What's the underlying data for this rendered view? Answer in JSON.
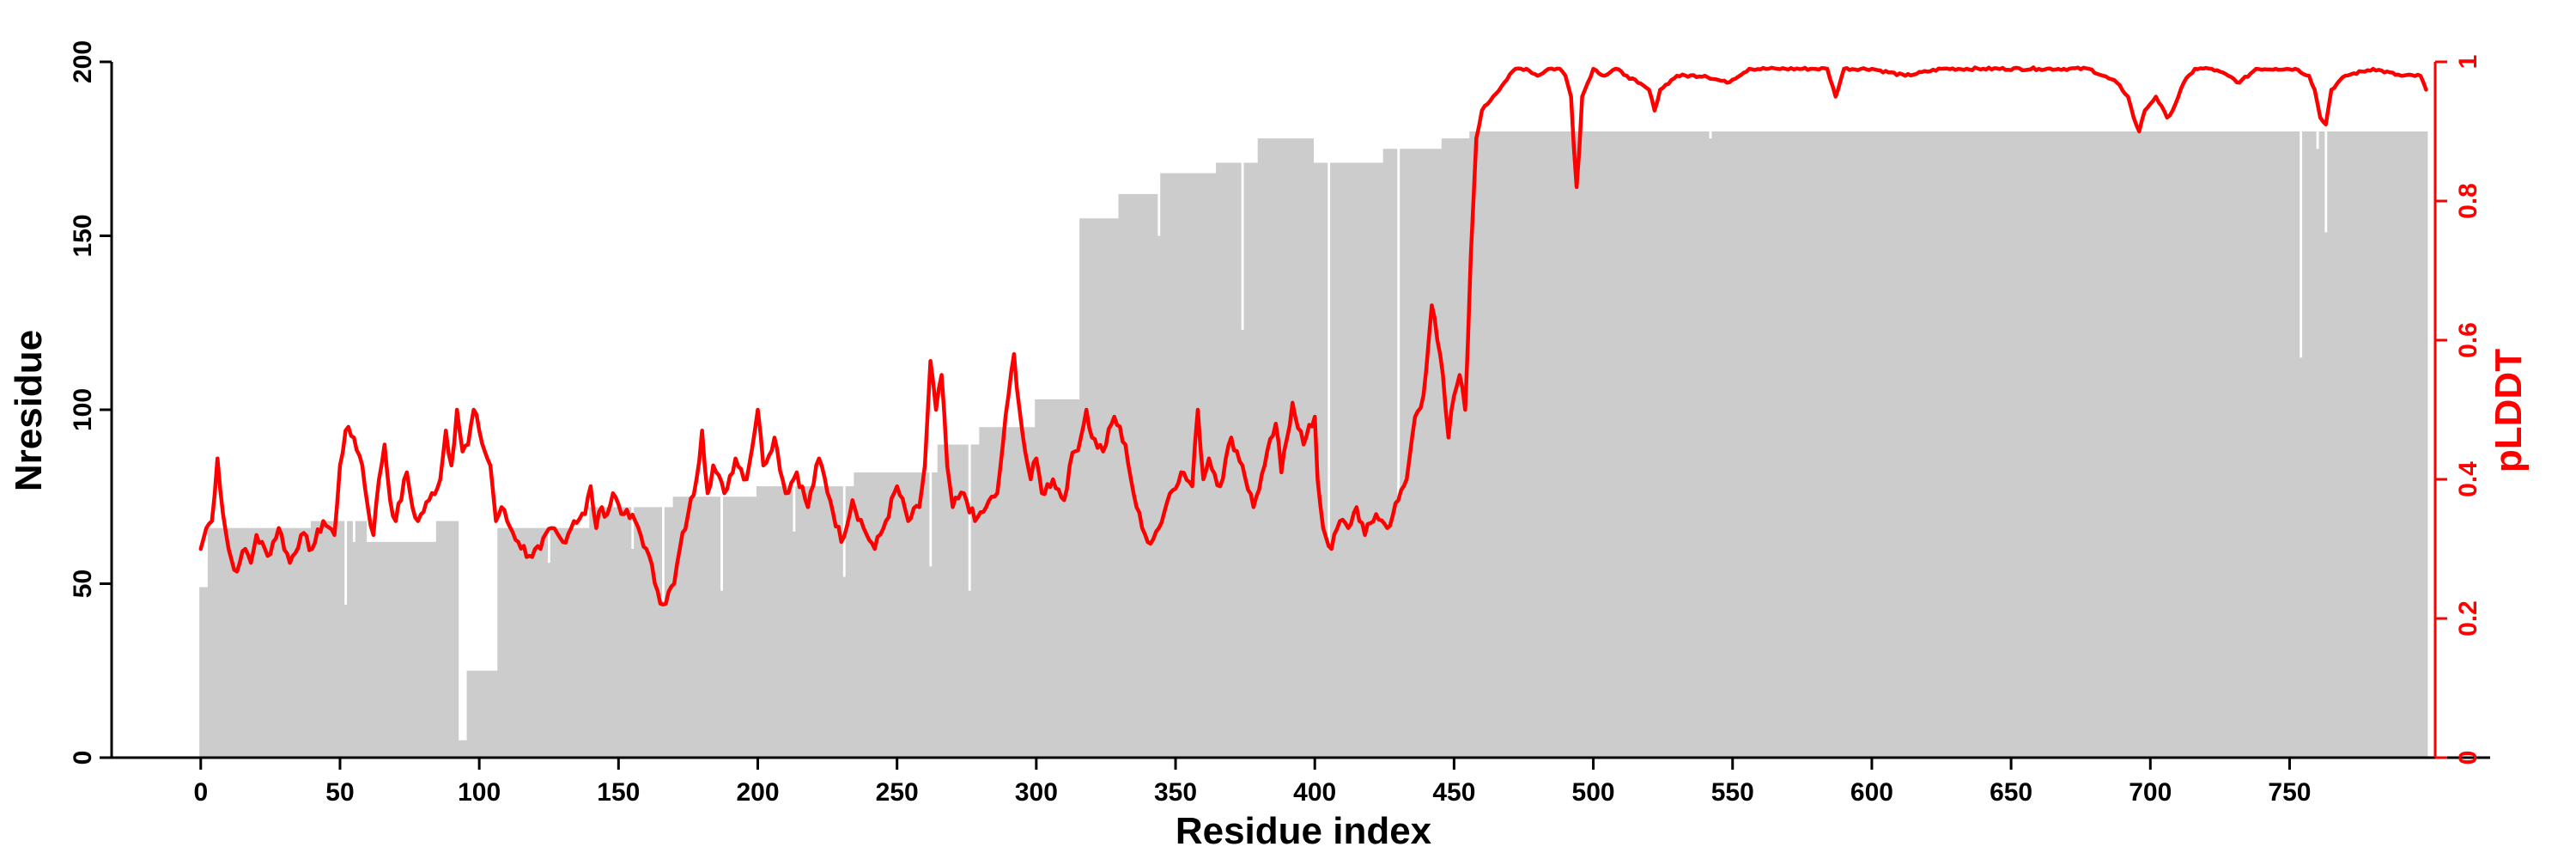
{
  "chart_data": {
    "type": "bar",
    "title": "",
    "xlabel": "Residue index",
    "ylabel_left": "Nresidue",
    "ylabel_right": "pLDDT",
    "xlim": [
      -32,
      822
    ],
    "ylim_left": [
      0,
      200
    ],
    "ylim_right": [
      0,
      1
    ],
    "x_ticks": [
      0,
      50,
      100,
      150,
      200,
      250,
      300,
      350,
      400,
      450,
      500,
      550,
      600,
      650,
      700,
      750
    ],
    "y_left_ticks": [
      0,
      50,
      100,
      150,
      200
    ],
    "y_right_ticks": [
      0,
      0.2,
      0.4,
      0.6,
      0.8,
      1
    ],
    "y_right_tick_labels": [
      "0",
      "0.2",
      "0.4",
      "0.6",
      "0.8",
      "1"
    ],
    "grid": false,
    "legend": "none",
    "colors": {
      "bars": "#cccccc",
      "plddt": "#ff0000",
      "axis_left": "#000000",
      "axis_right": "#ff0000",
      "gaps": "#ffffff"
    },
    "series": [
      {
        "name": "Nresidue",
        "kind": "bar",
        "x_step": 1,
        "segments": [
          [
            0,
            49
          ],
          [
            3,
            66
          ],
          [
            40,
            68
          ],
          [
            60,
            62
          ],
          [
            85,
            68
          ],
          [
            93,
            5
          ],
          [
            96,
            25
          ],
          [
            107,
            66
          ],
          [
            140,
            72
          ],
          [
            170,
            75
          ],
          [
            200,
            78
          ],
          [
            235,
            82
          ],
          [
            265,
            90
          ],
          [
            280,
            95
          ],
          [
            300,
            103
          ],
          [
            316,
            155
          ],
          [
            330,
            162
          ],
          [
            345,
            168
          ],
          [
            365,
            171
          ],
          [
            380,
            178
          ],
          [
            400,
            171
          ],
          [
            425,
            175
          ],
          [
            446,
            178
          ],
          [
            456,
            180
          ],
          [
            800,
            180
          ]
        ],
        "dips": [
          [
            52,
            44
          ],
          [
            55,
            62
          ],
          [
            95,
            5
          ],
          [
            125,
            56
          ],
          [
            155,
            60
          ],
          [
            166,
            45
          ],
          [
            187,
            48
          ],
          [
            213,
            65
          ],
          [
            231,
            52
          ],
          [
            262,
            55
          ],
          [
            276,
            48
          ],
          [
            344,
            150
          ],
          [
            374,
            123
          ],
          [
            405,
            60
          ],
          [
            430,
            75
          ],
          [
            542,
            178
          ],
          [
            754,
            115
          ],
          [
            760,
            175
          ],
          [
            763,
            151
          ]
        ]
      },
      {
        "name": "pLDDT",
        "kind": "line",
        "points": [
          [
            0,
            0.3
          ],
          [
            2,
            0.33
          ],
          [
            4,
            0.34
          ],
          [
            6,
            0.43
          ],
          [
            8,
            0.35
          ],
          [
            10,
            0.3
          ],
          [
            12,
            0.27
          ],
          [
            14,
            0.28
          ],
          [
            16,
            0.3
          ],
          [
            18,
            0.28
          ],
          [
            20,
            0.32
          ],
          [
            24,
            0.29
          ],
          [
            28,
            0.33
          ],
          [
            32,
            0.28
          ],
          [
            36,
            0.32
          ],
          [
            40,
            0.3
          ],
          [
            44,
            0.34
          ],
          [
            48,
            0.32
          ],
          [
            50,
            0.42
          ],
          [
            52,
            0.47
          ],
          [
            55,
            0.46
          ],
          [
            58,
            0.42
          ],
          [
            60,
            0.36
          ],
          [
            62,
            0.32
          ],
          [
            64,
            0.4
          ],
          [
            66,
            0.45
          ],
          [
            68,
            0.37
          ],
          [
            70,
            0.34
          ],
          [
            74,
            0.41
          ],
          [
            76,
            0.36
          ],
          [
            78,
            0.34
          ],
          [
            82,
            0.37
          ],
          [
            86,
            0.4
          ],
          [
            88,
            0.47
          ],
          [
            90,
            0.42
          ],
          [
            92,
            0.5
          ],
          [
            94,
            0.44
          ],
          [
            96,
            0.45
          ],
          [
            98,
            0.5
          ],
          [
            100,
            0.47
          ],
          [
            102,
            0.44
          ],
          [
            104,
            0.42
          ],
          [
            106,
            0.34
          ],
          [
            108,
            0.36
          ],
          [
            110,
            0.34
          ],
          [
            114,
            0.31
          ],
          [
            118,
            0.29
          ],
          [
            122,
            0.3
          ],
          [
            126,
            0.33
          ],
          [
            130,
            0.31
          ],
          [
            134,
            0.34
          ],
          [
            138,
            0.35
          ],
          [
            140,
            0.39
          ],
          [
            142,
            0.33
          ],
          [
            144,
            0.36
          ],
          [
            146,
            0.35
          ],
          [
            148,
            0.38
          ],
          [
            152,
            0.35
          ],
          [
            156,
            0.34
          ],
          [
            160,
            0.3
          ],
          [
            164,
            0.24
          ],
          [
            166,
            0.22
          ],
          [
            170,
            0.25
          ],
          [
            172,
            0.3
          ],
          [
            175,
            0.35
          ],
          [
            178,
            0.4
          ],
          [
            180,
            0.47
          ],
          [
            182,
            0.38
          ],
          [
            184,
            0.42
          ],
          [
            188,
            0.38
          ],
          [
            192,
            0.43
          ],
          [
            196,
            0.4
          ],
          [
            200,
            0.5
          ],
          [
            202,
            0.42
          ],
          [
            206,
            0.46
          ],
          [
            210,
            0.38
          ],
          [
            214,
            0.41
          ],
          [
            218,
            0.36
          ],
          [
            222,
            0.43
          ],
          [
            226,
            0.37
          ],
          [
            230,
            0.31
          ],
          [
            234,
            0.37
          ],
          [
            238,
            0.33
          ],
          [
            242,
            0.3
          ],
          [
            246,
            0.34
          ],
          [
            250,
            0.39
          ],
          [
            254,
            0.34
          ],
          [
            258,
            0.36
          ],
          [
            260,
            0.42
          ],
          [
            262,
            0.57
          ],
          [
            264,
            0.5
          ],
          [
            266,
            0.55
          ],
          [
            268,
            0.42
          ],
          [
            270,
            0.36
          ],
          [
            274,
            0.38
          ],
          [
            278,
            0.34
          ],
          [
            282,
            0.36
          ],
          [
            286,
            0.38
          ],
          [
            288,
            0.45
          ],
          [
            290,
            0.52
          ],
          [
            292,
            0.58
          ],
          [
            294,
            0.5
          ],
          [
            296,
            0.44
          ],
          [
            298,
            0.4
          ],
          [
            300,
            0.43
          ],
          [
            302,
            0.38
          ],
          [
            306,
            0.4
          ],
          [
            310,
            0.37
          ],
          [
            312,
            0.42
          ],
          [
            316,
            0.46
          ],
          [
            318,
            0.5
          ],
          [
            320,
            0.46
          ],
          [
            324,
            0.44
          ],
          [
            328,
            0.49
          ],
          [
            332,
            0.45
          ],
          [
            334,
            0.4
          ],
          [
            336,
            0.36
          ],
          [
            338,
            0.33
          ],
          [
            340,
            0.31
          ],
          [
            344,
            0.33
          ],
          [
            348,
            0.38
          ],
          [
            352,
            0.41
          ],
          [
            356,
            0.39
          ],
          [
            358,
            0.5
          ],
          [
            360,
            0.4
          ],
          [
            362,
            0.43
          ],
          [
            366,
            0.39
          ],
          [
            370,
            0.46
          ],
          [
            374,
            0.42
          ],
          [
            378,
            0.36
          ],
          [
            382,
            0.42
          ],
          [
            386,
            0.48
          ],
          [
            388,
            0.41
          ],
          [
            392,
            0.51
          ],
          [
            396,
            0.45
          ],
          [
            400,
            0.49
          ],
          [
            401,
            0.4
          ],
          [
            403,
            0.33
          ],
          [
            406,
            0.3
          ],
          [
            409,
            0.34
          ],
          [
            412,
            0.33
          ],
          [
            415,
            0.36
          ],
          [
            418,
            0.32
          ],
          [
            422,
            0.35
          ],
          [
            426,
            0.33
          ],
          [
            430,
            0.37
          ],
          [
            433,
            0.4
          ],
          [
            436,
            0.49
          ],
          [
            439,
            0.52
          ],
          [
            442,
            0.65
          ],
          [
            444,
            0.6
          ],
          [
            446,
            0.55
          ],
          [
            447,
            0.5
          ],
          [
            448,
            0.46
          ],
          [
            450,
            0.52
          ],
          [
            452,
            0.55
          ],
          [
            454,
            0.5
          ],
          [
            455,
            0.6
          ],
          [
            456,
            0.72
          ],
          [
            458,
            0.89
          ],
          [
            460,
            0.93
          ],
          [
            464,
            0.95
          ],
          [
            468,
            0.97
          ],
          [
            472,
            0.99
          ],
          [
            476,
            0.99
          ],
          [
            480,
            0.98
          ],
          [
            484,
            0.99
          ],
          [
            488,
            0.99
          ],
          [
            490,
            0.98
          ],
          [
            492,
            0.95
          ],
          [
            494,
            0.82
          ],
          [
            496,
            0.95
          ],
          [
            500,
            0.99
          ],
          [
            504,
            0.98
          ],
          [
            508,
            0.99
          ],
          [
            512,
            0.98
          ],
          [
            516,
            0.97
          ],
          [
            520,
            0.96
          ],
          [
            522,
            0.93
          ],
          [
            524,
            0.96
          ],
          [
            530,
            0.98
          ],
          [
            540,
            0.98
          ],
          [
            548,
            0.97
          ],
          [
            556,
            0.99
          ],
          [
            566,
            0.99
          ],
          [
            578,
            0.99
          ],
          [
            584,
            0.99
          ],
          [
            587,
            0.95
          ],
          [
            590,
            0.99
          ],
          [
            600,
            0.99
          ],
          [
            612,
            0.98
          ],
          [
            625,
            0.99
          ],
          [
            640,
            0.99
          ],
          [
            660,
            0.99
          ],
          [
            678,
            0.99
          ],
          [
            688,
            0.97
          ],
          [
            692,
            0.95
          ],
          [
            694,
            0.92
          ],
          [
            696,
            0.9
          ],
          [
            698,
            0.93
          ],
          [
            702,
            0.95
          ],
          [
            706,
            0.92
          ],
          [
            708,
            0.93
          ],
          [
            712,
            0.97
          ],
          [
            716,
            0.99
          ],
          [
            722,
            0.99
          ],
          [
            728,
            0.98
          ],
          [
            732,
            0.97
          ],
          [
            738,
            0.99
          ],
          [
            745,
            0.99
          ],
          [
            752,
            0.99
          ],
          [
            757,
            0.98
          ],
          [
            759,
            0.96
          ],
          [
            761,
            0.92
          ],
          [
            763,
            0.91
          ],
          [
            765,
            0.96
          ],
          [
            770,
            0.98
          ],
          [
            780,
            0.99
          ],
          [
            790,
            0.98
          ],
          [
            797,
            0.98
          ],
          [
            799,
            0.96
          ]
        ]
      }
    ]
  }
}
